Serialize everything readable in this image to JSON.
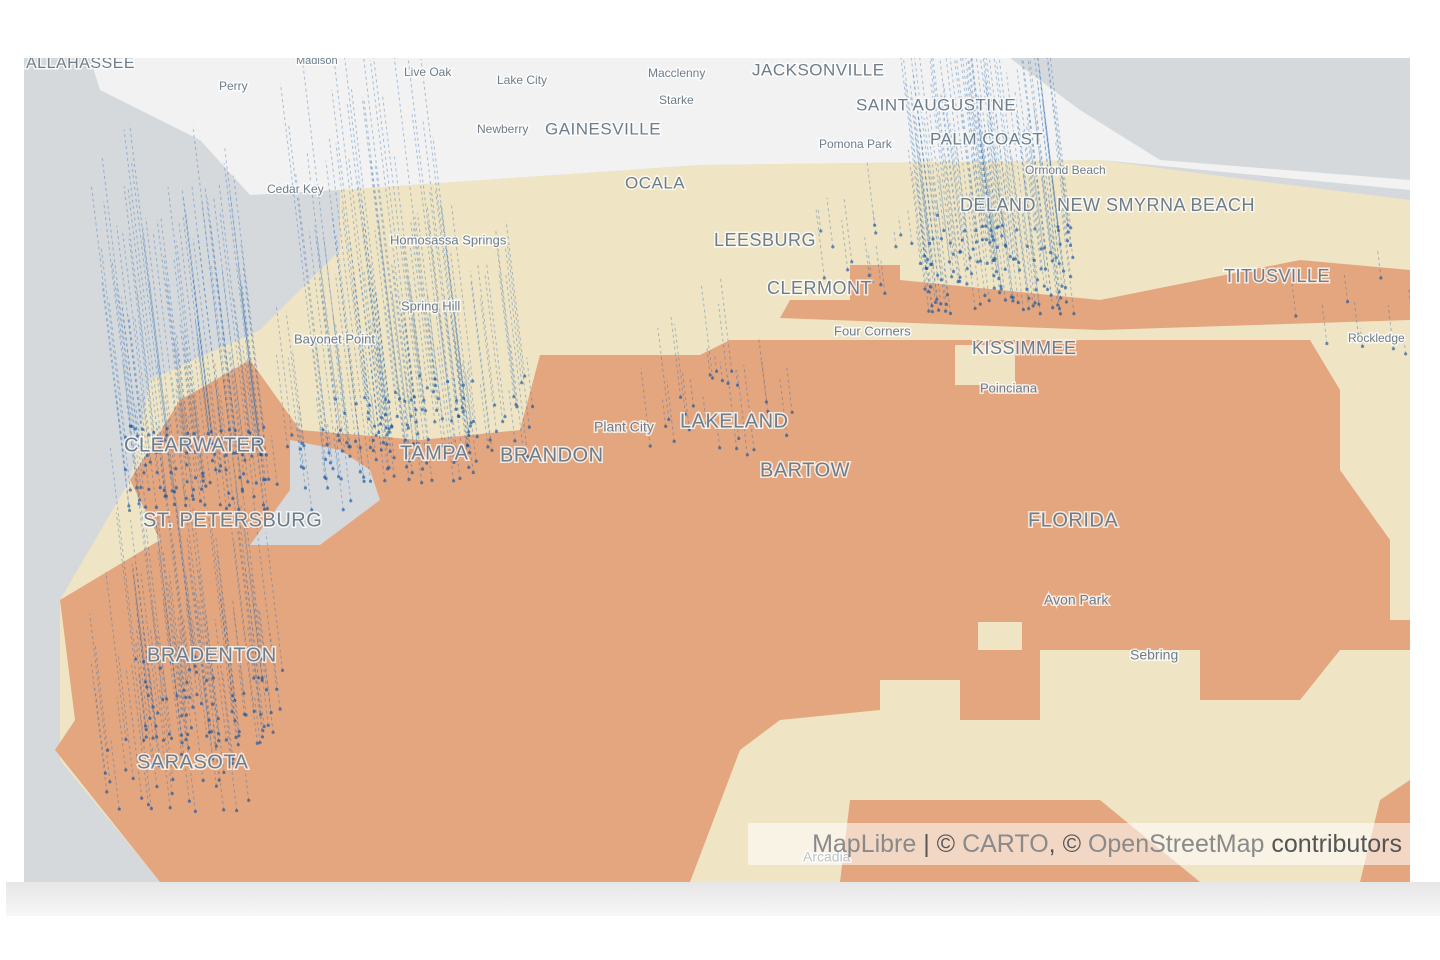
{
  "labels": [
    {
      "text": "ALLAHASSEE"
    },
    {
      "text": "Madison"
    },
    {
      "text": "Perry"
    },
    {
      "text": "Live Oak"
    },
    {
      "text": "Lake City"
    },
    {
      "text": "Macclenny"
    },
    {
      "text": "JACKSONVILLE"
    },
    {
      "text": "Starke"
    },
    {
      "text": "SAINT AUGUSTINE"
    },
    {
      "text": "Newberry"
    },
    {
      "text": "GAINESVILLE"
    },
    {
      "text": "Pomona Park"
    },
    {
      "text": "PALM COAST"
    },
    {
      "text": "Cedar Key"
    },
    {
      "text": "OCALA"
    },
    {
      "text": "Ormond Beach"
    },
    {
      "text": "DELAND"
    },
    {
      "text": "NEW SMYRNA BEACH"
    },
    {
      "text": "Homosassa Springs"
    },
    {
      "text": "LEESBURG"
    },
    {
      "text": "TITUSVILLE"
    },
    {
      "text": "CLERMONT"
    },
    {
      "text": "Spring Hill"
    },
    {
      "text": "Four Corners"
    },
    {
      "text": "Rockledge"
    },
    {
      "text": "Bayonet Point"
    },
    {
      "text": "KISSIMMEE"
    },
    {
      "text": "Poinciana"
    },
    {
      "text": "CLEARWATER"
    },
    {
      "text": "Plant City"
    },
    {
      "text": "LAKELAND"
    },
    {
      "text": "TAMPA"
    },
    {
      "text": "BRANDON"
    },
    {
      "text": "BARTOW"
    },
    {
      "text": "FLORIDA"
    },
    {
      "text": "ST. PETERSBURG"
    },
    {
      "text": "Avon Park"
    },
    {
      "text": "Sebring"
    },
    {
      "text": "BRADENTON"
    },
    {
      "text": "SARASOTA"
    },
    {
      "text": "Arcadia"
    }
  ],
  "attribution": [
    "MapLibre",
    " | © ",
    "CARTO",
    ", © ",
    "OpenStreetMap",
    " contributors"
  ]
}
